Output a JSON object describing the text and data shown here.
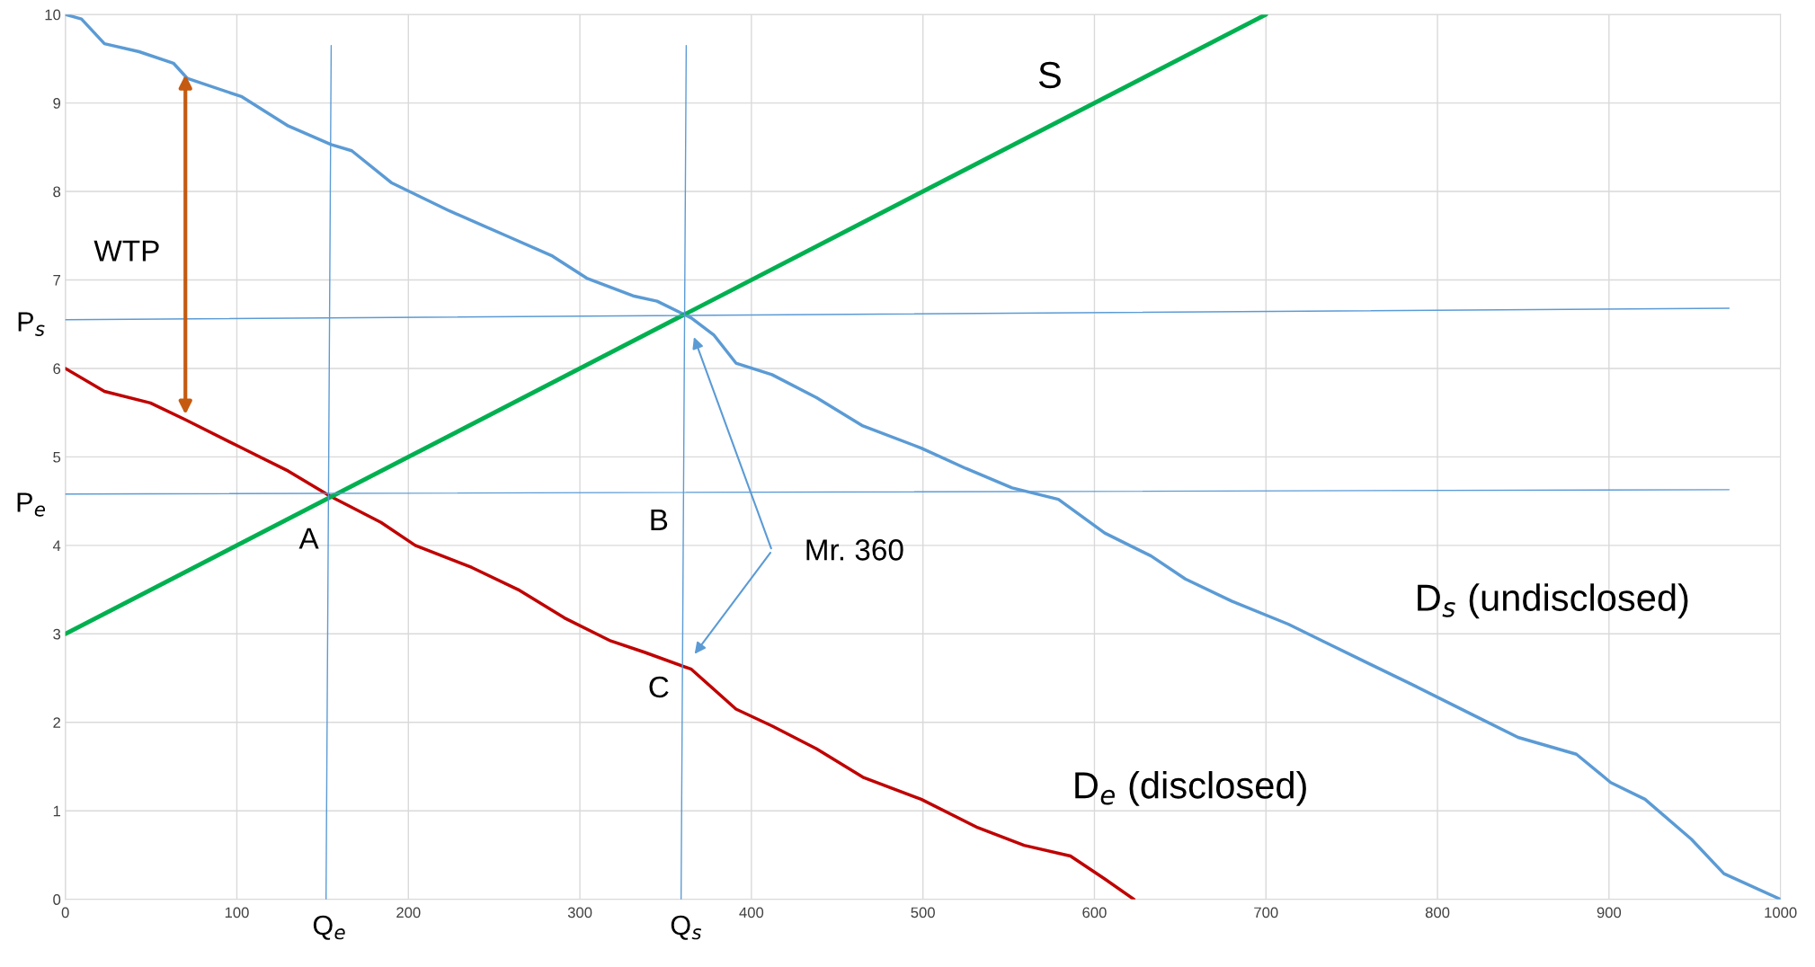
{
  "chart_data": {
    "type": "line",
    "xlim": [
      0,
      1000
    ],
    "ylim": [
      0,
      10
    ],
    "xticks": [
      0,
      100,
      200,
      300,
      400,
      500,
      600,
      700,
      800,
      900,
      1000
    ],
    "yticks": [
      0,
      1,
      2,
      3,
      4,
      5,
      6,
      7,
      8,
      9,
      10
    ],
    "grid": true,
    "legend": false,
    "series": [
      {
        "color": "#5b9bd5",
        "x": [
          0,
          9.4,
          22.8,
          43,
          63,
          71,
          103,
          130,
          155,
          167,
          190,
          224,
          257,
          284,
          304,
          331,
          345,
          365,
          378,
          391,
          412,
          438,
          465,
          499,
          525,
          552,
          579,
          606,
          633,
          653,
          680,
          713,
          733,
          753,
          787,
          820,
          847,
          881,
          901,
          921,
          948,
          967,
          1000
        ],
        "values": [
          10,
          9.95,
          9.67,
          9.58,
          9.45,
          9.28,
          9.07,
          8.74,
          8.53,
          8.46,
          8.1,
          7.78,
          7.5,
          7.27,
          7.02,
          6.82,
          6.76,
          6.57,
          6.38,
          6.06,
          5.93,
          5.67,
          5.35,
          5.1,
          4.87,
          4.65,
          4.52,
          4.14,
          3.88,
          3.62,
          3.37,
          3.11,
          2.92,
          2.73,
          2.41,
          2.09,
          1.83,
          1.64,
          1.32,
          1.13,
          0.68,
          0.29,
          0
        ]
      },
      {
        "color": "#c00000",
        "x": [
          0,
          22.8,
          49.6,
          70,
          103,
          130,
          155,
          184,
          204,
          237,
          264,
          291,
          318,
          338,
          365,
          391,
          412,
          438,
          465,
          499,
          532,
          559,
          586,
          606,
          623
        ],
        "values": [
          6,
          5.74,
          5.61,
          5.42,
          5.1,
          4.84,
          4.55,
          4.26,
          4.0,
          3.75,
          3.5,
          3.18,
          2.92,
          2.79,
          2.6,
          2.15,
          1.96,
          1.7,
          1.38,
          1.13,
          0.81,
          0.61,
          0.49,
          0.23,
          0
        ]
      },
      {
        "color": "#00b050",
        "x": [
          0,
          700
        ],
        "values": [
          3,
          10
        ]
      },
      {
        "color": "#5b9bd5",
        "x": [
          0,
          970
        ],
        "values": [
          6.55,
          6.68
        ]
      },
      {
        "color": "#5b9bd5",
        "x": [
          0,
          970
        ],
        "values": [
          4.58,
          4.63
        ]
      },
      {
        "color": "#5b9bd5",
        "x": [
          155,
          152
        ],
        "values": [
          9.65,
          0
        ]
      },
      {
        "color": "#5b9bd5",
        "x": [
          362,
          359
        ],
        "values": [
          9.65,
          0
        ]
      }
    ],
    "annotations": [
      "S",
      "WTP",
      "A",
      "B",
      "C",
      "Mr. 360",
      "D$_{s}$ (undisclosed)",
      "D$_{e}$ (disclosed)",
      "Q$_{e}$",
      "Q$_{s}$",
      "P$_{e}$",
      "P$_{s}$"
    ]
  }
}
